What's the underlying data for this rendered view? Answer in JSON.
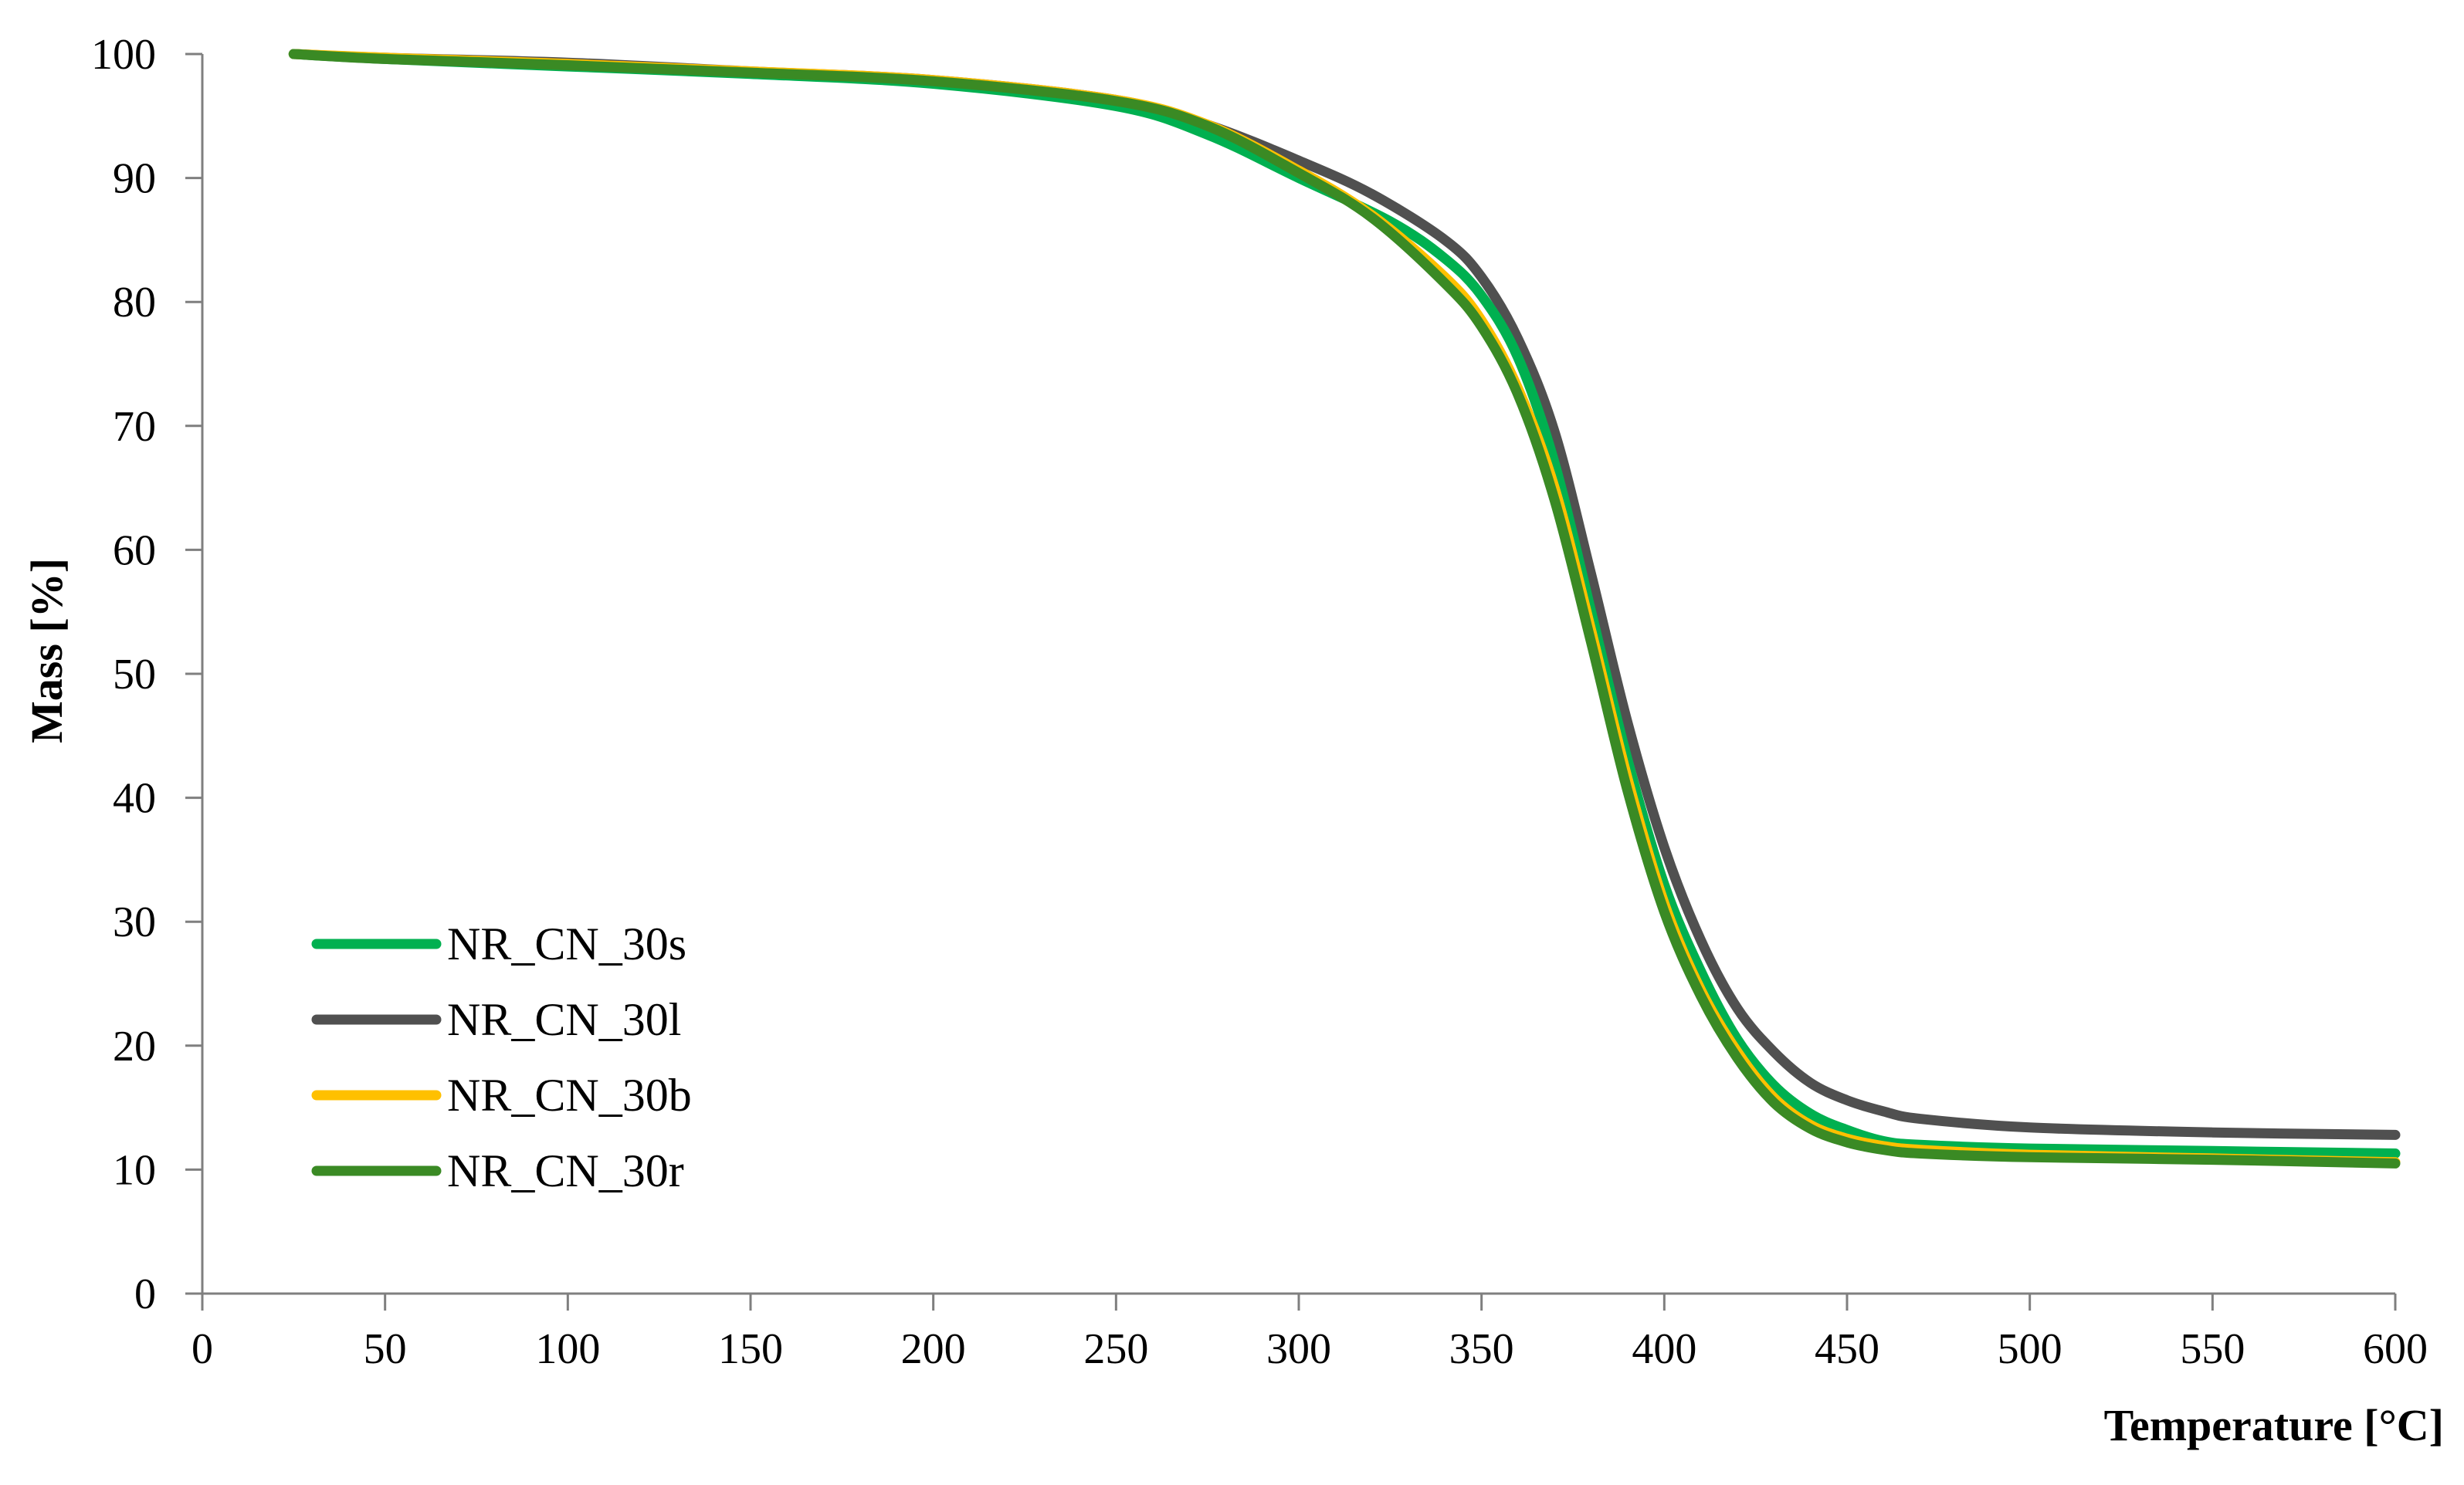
{
  "chart_data": {
    "type": "line",
    "title": "",
    "xlabel": "Temperature [°C]",
    "ylabel": "Mass [%]",
    "xlim": [
      0,
      600
    ],
    "ylim": [
      0,
      100
    ],
    "x_ticks": [
      0,
      50,
      100,
      150,
      200,
      250,
      300,
      350,
      400,
      450,
      500,
      550,
      600
    ],
    "y_ticks": [
      0,
      10,
      20,
      30,
      40,
      50,
      60,
      70,
      80,
      90,
      100
    ],
    "grid": false,
    "legend_position": "bottom-left",
    "series": [
      {
        "name": "NR_CN_30s",
        "color": "#00b050",
        "points": [
          [
            25,
            100
          ],
          [
            50,
            99.6
          ],
          [
            100,
            99.0
          ],
          [
            150,
            98.4
          ],
          [
            200,
            97.6
          ],
          [
            250,
            95.8
          ],
          [
            275,
            93.5
          ],
          [
            300,
            90.0
          ],
          [
            325,
            86.5
          ],
          [
            340,
            83.5
          ],
          [
            350,
            80.5
          ],
          [
            360,
            75.5
          ],
          [
            370,
            67.0
          ],
          [
            380,
            55.0
          ],
          [
            390,
            43.0
          ],
          [
            400,
            33.0
          ],
          [
            410,
            26.0
          ],
          [
            420,
            20.5
          ],
          [
            430,
            16.8
          ],
          [
            440,
            14.5
          ],
          [
            450,
            13.2
          ],
          [
            460,
            12.3
          ],
          [
            470,
            12.0
          ],
          [
            500,
            11.7
          ],
          [
            550,
            11.5
          ],
          [
            600,
            11.3
          ]
        ]
      },
      {
        "name": "NR_CN_30l",
        "color": "#505050",
        "points": [
          [
            25,
            100
          ],
          [
            50,
            99.7
          ],
          [
            100,
            99.3
          ],
          [
            150,
            98.6
          ],
          [
            200,
            97.9
          ],
          [
            250,
            96.3
          ],
          [
            275,
            94.3
          ],
          [
            300,
            91.4
          ],
          [
            320,
            88.7
          ],
          [
            340,
            85.0
          ],
          [
            350,
            82.0
          ],
          [
            360,
            77.0
          ],
          [
            370,
            69.5
          ],
          [
            380,
            58.0
          ],
          [
            390,
            46.0
          ],
          [
            400,
            36.0
          ],
          [
            410,
            28.5
          ],
          [
            420,
            23.0
          ],
          [
            430,
            19.5
          ],
          [
            440,
            17.0
          ],
          [
            450,
            15.6
          ],
          [
            460,
            14.7
          ],
          [
            470,
            14.1
          ],
          [
            500,
            13.4
          ],
          [
            550,
            13.0
          ],
          [
            600,
            12.8
          ]
        ]
      },
      {
        "name": "NR_CN_30b",
        "color": "#ffc000",
        "points": [
          [
            25,
            100
          ],
          [
            50,
            99.7
          ],
          [
            100,
            99.2
          ],
          [
            150,
            98.6
          ],
          [
            200,
            97.9
          ],
          [
            250,
            96.3
          ],
          [
            275,
            94.3
          ],
          [
            300,
            90.6
          ],
          [
            320,
            87.0
          ],
          [
            340,
            82.0
          ],
          [
            350,
            78.5
          ],
          [
            360,
            73.0
          ],
          [
            370,
            65.0
          ],
          [
            380,
            53.5
          ],
          [
            390,
            41.5
          ],
          [
            400,
            31.5
          ],
          [
            410,
            24.5
          ],
          [
            420,
            19.5
          ],
          [
            430,
            15.8
          ],
          [
            440,
            13.6
          ],
          [
            450,
            12.5
          ],
          [
            460,
            11.9
          ],
          [
            470,
            11.6
          ],
          [
            500,
            11.2
          ],
          [
            550,
            10.9
          ],
          [
            600,
            10.6
          ]
        ]
      },
      {
        "name": "NR_CN_30r",
        "color": "#3a8a24",
        "points": [
          [
            25,
            100
          ],
          [
            50,
            99.6
          ],
          [
            100,
            99.1
          ],
          [
            150,
            98.5
          ],
          [
            200,
            97.8
          ],
          [
            250,
            96.2
          ],
          [
            275,
            94.2
          ],
          [
            300,
            90.4
          ],
          [
            320,
            86.8
          ],
          [
            340,
            81.5
          ],
          [
            350,
            78.0
          ],
          [
            360,
            72.5
          ],
          [
            370,
            64.0
          ],
          [
            380,
            52.5
          ],
          [
            390,
            40.5
          ],
          [
            400,
            30.8
          ],
          [
            410,
            24.0
          ],
          [
            420,
            19.0
          ],
          [
            430,
            15.4
          ],
          [
            440,
            13.3
          ],
          [
            450,
            12.2
          ],
          [
            460,
            11.6
          ],
          [
            470,
            11.3
          ],
          [
            500,
            11.0
          ],
          [
            550,
            10.8
          ],
          [
            600,
            10.5
          ]
        ]
      }
    ]
  }
}
